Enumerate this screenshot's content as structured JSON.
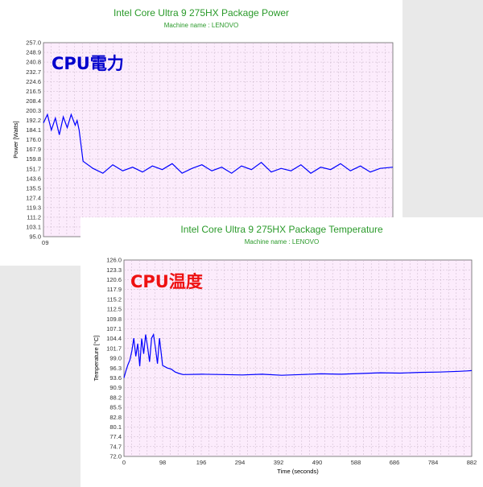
{
  "chart_data": [
    {
      "type": "line",
      "title": "Intel Core Ultra 9 275HX Package Power",
      "subtitle": "Machine name : LENOVO",
      "overlay_label": "CPU電力",
      "ylabel": "Power [Watts]",
      "xlabel": "",
      "ylim": [
        95.0,
        257.0
      ],
      "yticks": [
        "257.0",
        "248.9",
        "240.8",
        "232.7",
        "224.6",
        "216.5",
        "208.4",
        "200.3",
        "192.2",
        "184.1",
        "176.0",
        "167.9",
        "159.8",
        "151.7",
        "143.6",
        "135.5",
        "127.4",
        "119.3",
        "111.2",
        "103.1",
        "95.0"
      ],
      "xlim": [
        0,
        882
      ],
      "xticks": [
        "0",
        "9"
      ],
      "series": [
        {
          "color": "#0000ff",
          "x": [
            0,
            10,
            20,
            30,
            40,
            50,
            60,
            70,
            80,
            85,
            90,
            100,
            125,
            150,
            175,
            200,
            225,
            250,
            275,
            300,
            325,
            350,
            375,
            400,
            425,
            450,
            475,
            500,
            525,
            550,
            575,
            600,
            625,
            650,
            675,
            700,
            725,
            750,
            775,
            800,
            825,
            850,
            882
          ],
          "values": [
            190,
            197,
            184,
            194,
            180,
            195,
            186,
            197,
            188,
            192,
            184,
            158,
            152,
            148,
            155,
            150,
            153,
            149,
            154,
            151,
            156,
            148,
            152,
            155,
            150,
            153,
            148,
            154,
            151,
            157,
            149,
            152,
            150,
            155,
            148,
            153,
            151,
            156,
            150,
            154,
            149,
            152,
            153
          ]
        }
      ]
    },
    {
      "type": "line",
      "title": "Intel Core Ultra 9 275HX Package Temperature",
      "subtitle": "Machine name : LENOVO",
      "overlay_label": "CPU温度",
      "ylabel": "Temperature [°C]",
      "xlabel": "Time (seconds)",
      "ylim": [
        72.0,
        126.0
      ],
      "yticks": [
        "126.0",
        "123.3",
        "120.6",
        "117.9",
        "115.2",
        "112.5",
        "109.8",
        "107.1",
        "104.4",
        "101.7",
        "99.0",
        "96.3",
        "93.6",
        "90.9",
        "88.2",
        "85.5",
        "82.8",
        "80.1",
        "77.4",
        "74.7",
        "72.0"
      ],
      "xlim": [
        0,
        882
      ],
      "xticks": [
        "0",
        "98",
        "196",
        "294",
        "392",
        "490",
        "588",
        "686",
        "784",
        "882"
      ],
      "series": [
        {
          "color": "#0000ff",
          "x": [
            0,
            5,
            10,
            15,
            20,
            25,
            30,
            35,
            40,
            45,
            50,
            55,
            60,
            65,
            70,
            75,
            80,
            85,
            90,
            98,
            110,
            120,
            130,
            140,
            150,
            200,
            250,
            300,
            350,
            400,
            450,
            500,
            550,
            600,
            650,
            700,
            750,
            800,
            850,
            870,
            882
          ],
          "values": [
            93.6,
            95.5,
            97.2,
            98.5,
            101.0,
            104.5,
            99.5,
            103.0,
            96.8,
            104.4,
            100.2,
            105.5,
            102.0,
            98.0,
            104.5,
            105.5,
            101.7,
            97.5,
            104.5,
            97.0,
            96.3,
            96.0,
            95.2,
            94.8,
            94.5,
            94.6,
            94.5,
            94.4,
            94.6,
            94.3,
            94.5,
            94.7,
            94.6,
            94.8,
            95.0,
            94.9,
            95.1,
            95.2,
            95.4,
            95.5,
            95.6
          ]
        }
      ]
    }
  ]
}
